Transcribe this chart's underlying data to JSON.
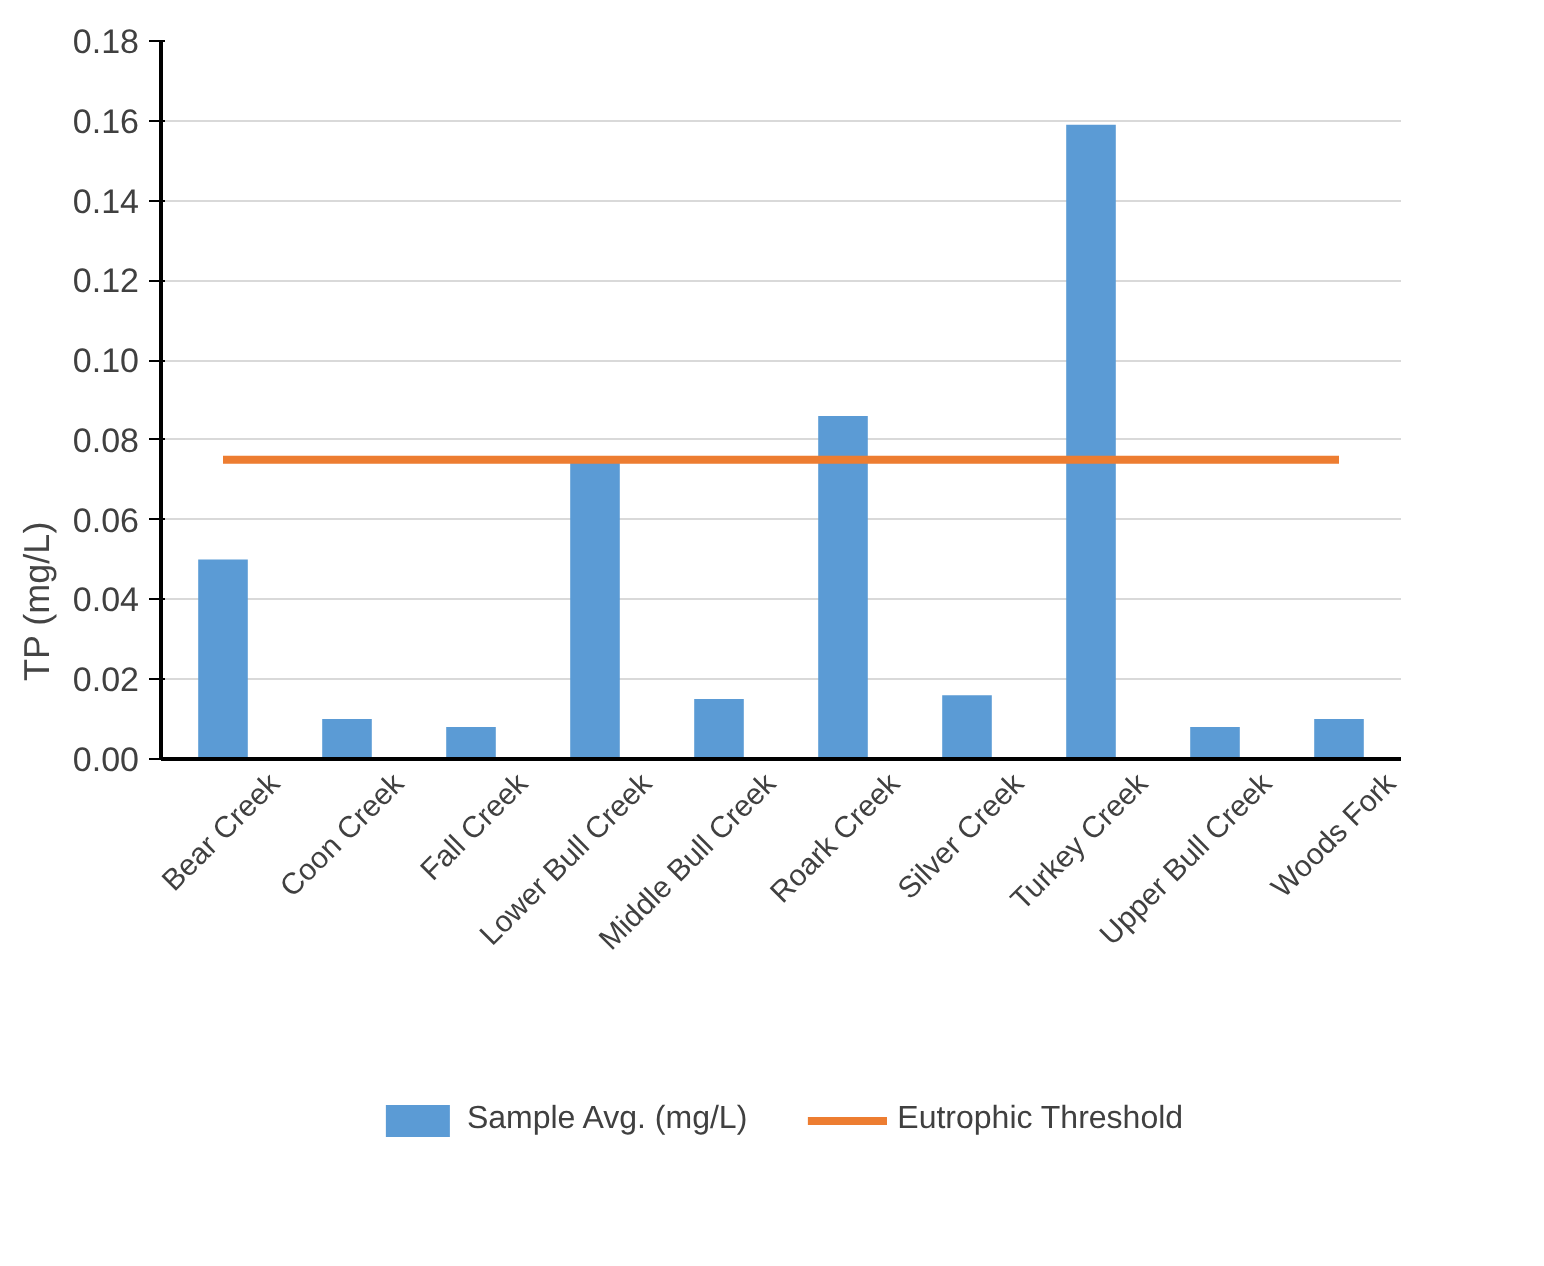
{
  "chart_data": {
    "type": "bar",
    "ylabel": "TP (mg/L)",
    "categories": [
      "Bear Creek",
      "Coon Creek",
      "Fall Creek",
      "Lower Bull Creek",
      "Middle Bull Creek",
      "Roark Creek",
      "Silver Creek",
      "Turkey Creek",
      "Upper Bull Creek",
      "Woods Fork"
    ],
    "series": [
      {
        "name": "Sample Avg. (mg/L)",
        "color": "#5b9bd5",
        "values": [
          0.05,
          0.01,
          0.008,
          0.075,
          0.015,
          0.086,
          0.016,
          0.159,
          0.008,
          0.01
        ]
      },
      {
        "name": "Eutrophic Threshold",
        "type": "line",
        "color": "#ed7d31",
        "values": [
          0.075,
          0.075,
          0.075,
          0.075,
          0.075,
          0.075,
          0.075,
          0.075,
          0.075,
          0.075
        ]
      }
    ],
    "ylim": [
      0,
      0.18
    ],
    "yticks": [
      {
        "value": 0,
        "label": "0.00"
      },
      {
        "value": 0.02,
        "label": "0.02"
      },
      {
        "value": 0.04,
        "label": "0.04"
      },
      {
        "value": 0.06,
        "label": "0.06"
      },
      {
        "value": 0.08,
        "label": "0.08"
      },
      {
        "value": 0.1,
        "label": "0.10"
      },
      {
        "value": 0.12,
        "label": "0.12"
      },
      {
        "value": 0.14,
        "label": "0.14"
      },
      {
        "value": 0.16,
        "label": "0.16"
      },
      {
        "value": 0.18,
        "label": "0.18"
      }
    ],
    "grid": "y",
    "legend": "bottom"
  }
}
